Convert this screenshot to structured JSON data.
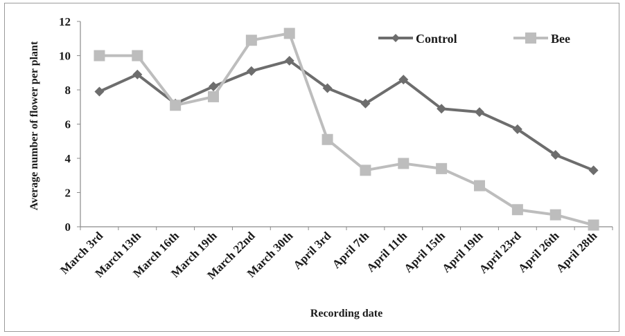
{
  "chart_data": {
    "type": "line",
    "title": "",
    "xlabel": "Recording date",
    "ylabel": "Average number of flower per plant",
    "ylim": [
      0,
      12
    ],
    "yticks": [
      "0",
      "2",
      "4",
      "6",
      "8",
      "10",
      "12"
    ],
    "categories": [
      "March 3rd",
      "March 13th",
      "March 16th",
      "March 19th",
      "March 22nd",
      "March 30th",
      "April 3rd",
      "April 7th",
      "April 11th",
      "April 15th",
      "April 19th",
      "April 23rd",
      "April 26th",
      "April 28th"
    ],
    "series": [
      {
        "name": "Control",
        "marker": "diamond",
        "color": "#6d6d6d",
        "values": [
          7.9,
          8.9,
          7.2,
          8.2,
          9.1,
          9.7,
          8.1,
          7.2,
          8.6,
          6.9,
          6.7,
          5.7,
          4.2,
          3.3
        ]
      },
      {
        "name": "Bee",
        "marker": "square",
        "color": "#bdbdbd",
        "values": [
          10.0,
          10.0,
          7.1,
          7.6,
          10.9,
          11.3,
          5.1,
          3.3,
          3.7,
          3.4,
          2.4,
          1.0,
          0.7,
          0.1
        ]
      }
    ],
    "legend_position": "top-right",
    "grid": false
  }
}
